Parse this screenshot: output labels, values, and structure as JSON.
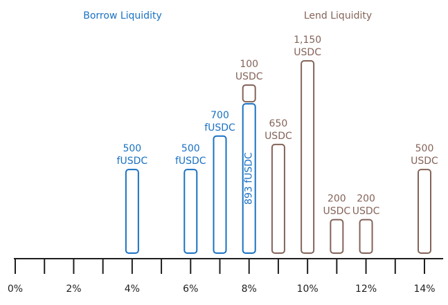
{
  "chart_data": {
    "type": "bar",
    "stacked": true,
    "x": [
      4,
      6,
      7,
      8,
      9,
      10,
      11,
      12,
      14
    ],
    "series": [
      {
        "name": "Borrow Liquidity",
        "color": "#1971c2",
        "values": [
          500,
          500,
          700,
          893,
          null,
          null,
          null,
          null,
          null
        ],
        "value_labels": [
          "500 fUSDC",
          "500 fUSDC",
          "700 fUSDC",
          "893 fUSDC",
          null,
          null,
          null,
          null,
          null
        ]
      },
      {
        "name": "Lend Liquidity",
        "color": "#846358",
        "values": [
          null,
          null,
          null,
          100,
          650,
          1150,
          200,
          200,
          500
        ],
        "value_labels": [
          null,
          null,
          null,
          "100 USDC",
          "650 USDC",
          "1,150 USDC",
          "200 USDC",
          "200 USDC",
          "500 USDC"
        ]
      }
    ],
    "xlim": [
      0,
      14
    ],
    "xticks": [
      {
        "value": 0,
        "label": "0%"
      },
      {
        "value": 2,
        "label": "2%"
      },
      {
        "value": 4,
        "label": "4%"
      },
      {
        "value": 6,
        "label": "6%"
      },
      {
        "value": 8,
        "label": "8%"
      },
      {
        "value": 10,
        "label": "10%"
      },
      {
        "value": 12,
        "label": "12%"
      },
      {
        "value": 14,
        "label": "14%"
      }
    ],
    "xminor_ticks": [
      1,
      3,
      5,
      7,
      9,
      11,
      13
    ]
  }
}
